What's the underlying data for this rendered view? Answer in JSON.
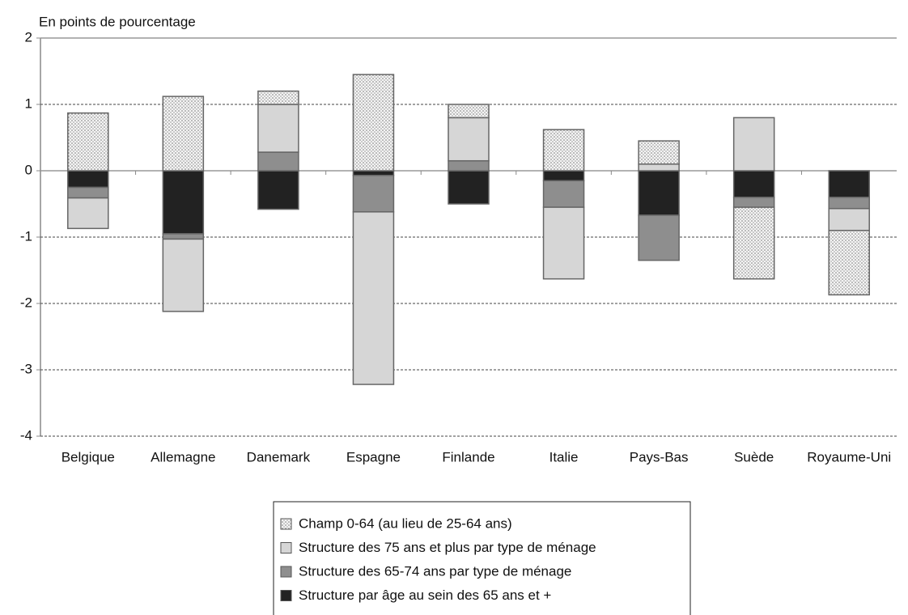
{
  "chart_data": {
    "type": "stacked_bar",
    "y_label": "En points de pourcentage",
    "categories": [
      "Belgique",
      "Allemagne",
      "Danemark",
      "Espagne",
      "Finlande",
      "Italie",
      "Pays-Bas",
      "Suède",
      "Royaume-Uni"
    ],
    "series": [
      {
        "name": "Champ 0-64 (au lieu de 25-64 ans)",
        "color": "#f2f2f2",
        "hatch": "dots",
        "values": [
          0.87,
          1.12,
          0.2,
          1.45,
          0.2,
          0.62,
          0.35,
          -1.08,
          -0.97
        ]
      },
      {
        "name": "Structure des 75 ans et plus par type de ménage",
        "color": "#d6d6d6",
        "values": [
          -0.46,
          -1.09,
          0.72,
          -2.6,
          0.65,
          -1.08,
          0.1,
          0.8,
          -0.33
        ]
      },
      {
        "name": "Structure des 65-74 ans par type de ménage",
        "color": "#8e8e8e",
        "values": [
          -0.16,
          -0.08,
          0.28,
          -0.55,
          0.15,
          -0.4,
          -0.68,
          -0.15,
          -0.17
        ]
      },
      {
        "name": "Structure par âge au sein des 65 ans et +",
        "color": "#222222",
        "values": [
          -0.25,
          -0.95,
          -0.58,
          -0.07,
          -0.5,
          -0.15,
          -0.67,
          -0.4,
          -0.4
        ]
      }
    ],
    "ylim": [
      -4,
      2
    ],
    "yticks": [
      -4,
      -3,
      -2,
      -1,
      0,
      1,
      2
    ],
    "grid": true
  }
}
